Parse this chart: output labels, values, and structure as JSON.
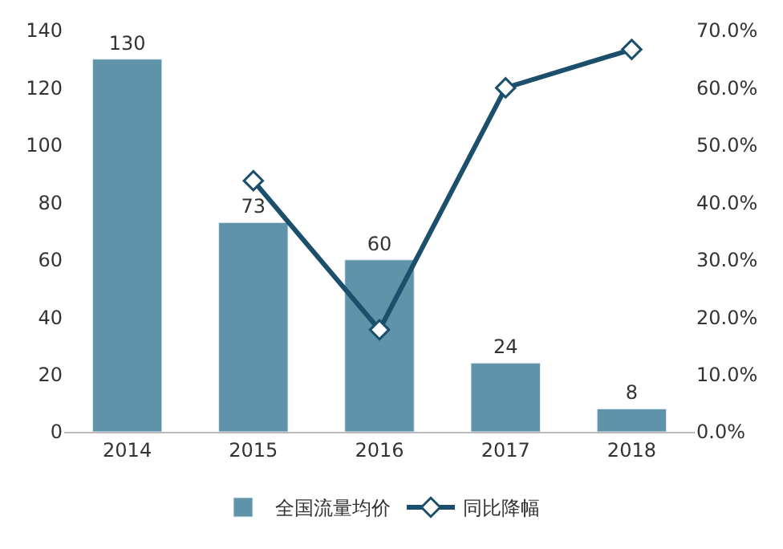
{
  "chart_data": {
    "type": "bar",
    "categories": [
      "2014",
      "2015",
      "2016",
      "2017",
      "2018"
    ],
    "series": [
      {
        "name": "全国流量均价",
        "color": "#5f93aa",
        "values": [
          130,
          73,
          60,
          24,
          8
        ],
        "value_labels": [
          "130",
          "73",
          "60",
          "24",
          "8"
        ]
      },
      {
        "name": "同比降幅",
        "type": "line",
        "axis": "y2",
        "color": "#1b4f6b",
        "marker": "diamond",
        "values": [
          null,
          43.8,
          17.8,
          60,
          66.7
        ]
      }
    ],
    "ylim": [
      0,
      140
    ],
    "yticks": [
      0,
      20,
      40,
      60,
      80,
      100,
      120,
      140
    ],
    "y2lim": [
      0,
      70
    ],
    "y2ticks": [
      {
        "value": 0,
        "label": "0.0%"
      },
      {
        "value": 10,
        "label": "10.0%"
      },
      {
        "value": 20,
        "label": "20.0%"
      },
      {
        "value": 30,
        "label": "30.0%"
      },
      {
        "value": 40,
        "label": "40.0%"
      },
      {
        "value": 50,
        "label": "50.0%"
      },
      {
        "value": 60,
        "label": "60.0%"
      },
      {
        "value": 70,
        "label": "70.0%"
      }
    ],
    "legend": "bottom"
  }
}
